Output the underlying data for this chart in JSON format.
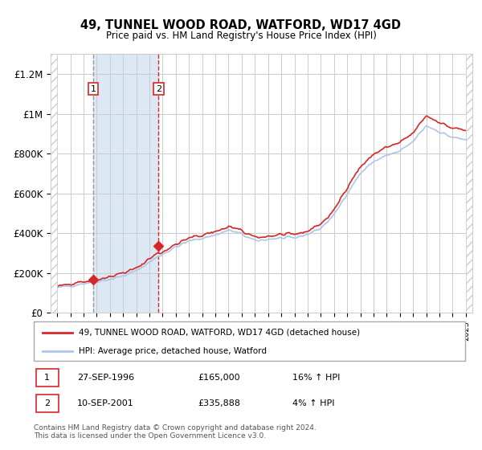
{
  "title": "49, TUNNEL WOOD ROAD, WATFORD, WD17 4GD",
  "subtitle": "Price paid vs. HM Land Registry's House Price Index (HPI)",
  "legend_line1": "49, TUNNEL WOOD ROAD, WATFORD, WD17 4GD (detached house)",
  "legend_line2": "HPI: Average price, detached house, Watford",
  "transaction1_date": "27-SEP-1996",
  "transaction1_price": "£165,000",
  "transaction1_hpi": "16% ↑ HPI",
  "transaction2_date": "10-SEP-2001",
  "transaction2_price": "£335,888",
  "transaction2_hpi": "4% ↑ HPI",
  "copyright": "Contains HM Land Registry data © Crown copyright and database right 2024.\nThis data is licensed under the Open Government Licence v3.0.",
  "hpi_color": "#aec6e8",
  "price_color": "#d62728",
  "marker_color": "#d62728",
  "shaded_region_color": "#dce9f5",
  "vline1_color": "#999999",
  "vline2_color": "#d62728",
  "ylim_max": 1300000,
  "y_ticks": [
    0,
    200000,
    400000,
    600000,
    800000,
    1000000,
    1200000
  ],
  "y_tick_labels": [
    "£0",
    "£200K",
    "£400K",
    "£600K",
    "£800K",
    "£1M",
    "£1.2M"
  ],
  "transaction1_x": 1996.74,
  "transaction1_y": 165000,
  "transaction2_x": 2001.69,
  "transaction2_y": 335888,
  "xmin": 1993.5,
  "xmax": 2025.5
}
